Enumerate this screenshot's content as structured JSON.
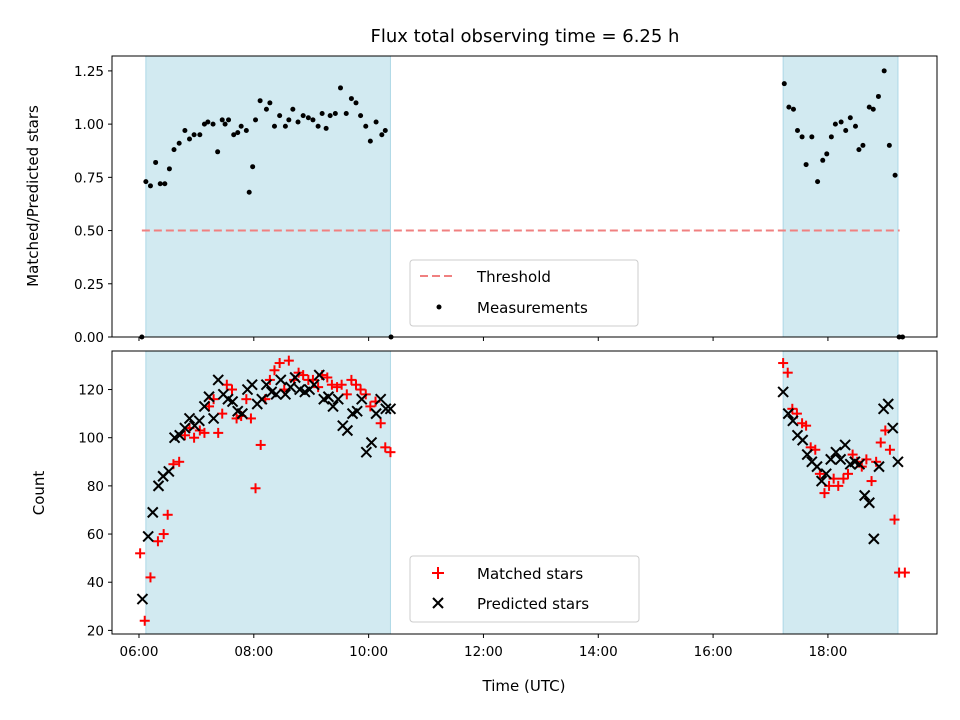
{
  "chart_data": {
    "title": "Flux total observing time = 6.25 h",
    "type": "scatter",
    "colors": {
      "threshold": "#f08080",
      "measurements": "#000000",
      "matched": "#ff0000",
      "predicted": "#000000",
      "shade": "#add8e6"
    },
    "x_axis": {
      "label": "Time (UTC)",
      "unit": "hours",
      "xlim": [
        5.53,
        19.9
      ],
      "ticks": [
        {
          "value": 6,
          "label": "06:00"
        },
        {
          "value": 8,
          "label": "08:00"
        },
        {
          "value": 10,
          "label": "10:00"
        },
        {
          "value": 12,
          "label": "12:00"
        },
        {
          "value": 14,
          "label": "14:00"
        },
        {
          "value": 16,
          "label": "16:00"
        },
        {
          "value": 18,
          "label": "18:00"
        }
      ]
    },
    "observing_windows": [
      [
        6.12,
        10.38
      ],
      [
        17.22,
        19.22
      ]
    ],
    "ratio_panel": {
      "ylabel": "Matched/Predicted stars",
      "ylim": [
        0,
        1.32
      ],
      "yticks": [
        {
          "value": 0.0,
          "label": "0.00"
        },
        {
          "value": 0.25,
          "label": "0.25"
        },
        {
          "value": 0.5,
          "label": "0.50"
        },
        {
          "value": 0.75,
          "label": "0.75"
        },
        {
          "value": 1.0,
          "label": "1.00"
        },
        {
          "value": 1.25,
          "label": "1.25"
        }
      ],
      "threshold": {
        "name": "Threshold",
        "value": 0.5,
        "x_range": [
          6.05,
          19.25
        ]
      },
      "legend": {
        "entries": [
          "Threshold",
          "Measurements"
        ],
        "placement": "lower-center"
      },
      "measurements": {
        "name": "Measurements",
        "x": [
          6.05,
          6.12,
          6.2,
          6.29,
          6.37,
          6.45,
          6.53,
          6.61,
          6.7,
          6.8,
          6.88,
          6.96,
          7.06,
          7.14,
          7.2,
          7.29,
          7.37,
          7.45,
          7.5,
          7.56,
          7.65,
          7.72,
          7.78,
          7.87,
          7.92,
          7.98,
          8.03,
          8.11,
          8.22,
          8.28,
          8.36,
          8.45,
          8.55,
          8.61,
          8.68,
          8.77,
          8.86,
          8.95,
          9.03,
          9.12,
          9.19,
          9.26,
          9.33,
          9.42,
          9.51,
          9.61,
          9.7,
          9.78,
          9.86,
          9.95,
          10.03,
          10.13,
          10.23,
          10.29,
          10.39,
          17.24,
          17.32,
          17.4,
          17.47,
          17.55,
          17.62,
          17.72,
          17.82,
          17.91,
          17.98,
          18.06,
          18.13,
          18.23,
          18.31,
          18.39,
          18.48,
          18.54,
          18.61,
          18.72,
          18.79,
          18.88,
          18.98,
          19.07,
          19.17,
          19.24,
          19.3
        ],
        "y": [
          0.0,
          0.73,
          0.71,
          0.82,
          0.72,
          0.72,
          0.79,
          0.88,
          0.91,
          0.97,
          0.93,
          0.95,
          0.95,
          1.0,
          1.01,
          1.0,
          0.87,
          1.02,
          1.0,
          1.02,
          0.95,
          0.96,
          0.99,
          0.97,
          0.68,
          0.8,
          1.02,
          1.11,
          1.07,
          1.1,
          0.99,
          1.04,
          0.99,
          1.02,
          1.07,
          1.01,
          1.04,
          1.03,
          1.02,
          0.99,
          1.05,
          0.98,
          1.04,
          1.05,
          1.17,
          1.05,
          1.12,
          1.1,
          1.04,
          0.99,
          0.92,
          1.01,
          0.95,
          0.97,
          0.0,
          1.19,
          1.08,
          1.07,
          0.97,
          0.94,
          0.81,
          0.94,
          0.73,
          0.83,
          0.86,
          0.94,
          1.0,
          1.01,
          0.97,
          1.03,
          0.99,
          0.88,
          0.9,
          1.08,
          1.07,
          1.13,
          1.25,
          0.9,
          0.76,
          0.0,
          0.0
        ]
      }
    },
    "count_panel": {
      "ylabel": "Count",
      "ylim": [
        18.5,
        136
      ],
      "yticks": [
        {
          "value": 20,
          "label": "20"
        },
        {
          "value": 40,
          "label": "40"
        },
        {
          "value": 60,
          "label": "60"
        },
        {
          "value": 80,
          "label": "80"
        },
        {
          "value": 100,
          "label": "100"
        },
        {
          "value": 120,
          "label": "120"
        }
      ],
      "legend": {
        "entries": [
          "Matched stars",
          "Predicted stars"
        ],
        "placement": "lower-center"
      },
      "matched": {
        "name": "Matched stars",
        "x": [
          6.02,
          6.1,
          6.2,
          6.33,
          6.43,
          6.5,
          6.6,
          6.7,
          6.8,
          6.88,
          6.96,
          7.06,
          7.14,
          7.22,
          7.3,
          7.38,
          7.45,
          7.53,
          7.62,
          7.7,
          7.78,
          7.87,
          7.95,
          8.03,
          8.12,
          8.2,
          8.28,
          8.36,
          8.45,
          8.53,
          8.61,
          8.7,
          8.78,
          8.86,
          8.95,
          9.03,
          9.12,
          9.19,
          9.28,
          9.36,
          9.45,
          9.53,
          9.62,
          9.7,
          9.78,
          9.86,
          9.95,
          10.03,
          10.12,
          10.21,
          10.29,
          10.38,
          17.22,
          17.3,
          17.38,
          17.46,
          17.55,
          17.62,
          17.7,
          17.78,
          17.86,
          17.94,
          18.02,
          18.1,
          18.18,
          18.27,
          18.35,
          18.43,
          18.51,
          18.59,
          18.67,
          18.76,
          18.84,
          18.92,
          19.0,
          19.08,
          19.16,
          19.24,
          19.34
        ],
        "y": [
          52,
          24,
          42,
          57,
          60,
          68,
          89,
          90,
          101,
          104,
          100,
          103,
          102,
          113,
          116,
          102,
          110,
          122,
          120,
          108,
          109,
          116,
          108,
          79,
          97,
          116,
          124,
          128,
          131,
          120,
          132,
          124,
          127,
          126,
          124,
          124,
          121,
          126,
          125,
          122,
          121,
          122,
          118,
          124,
          122,
          120,
          118,
          113,
          115,
          106,
          96,
          94,
          131,
          127,
          112,
          110,
          106,
          105,
          96,
          95,
          85,
          77,
          80,
          83,
          80,
          83,
          85,
          93,
          90,
          88,
          91,
          82,
          90,
          98,
          103,
          95,
          66,
          44,
          44
        ]
      },
      "predicted": {
        "name": "Predicted stars",
        "x": [
          6.06,
          6.16,
          6.24,
          6.34,
          6.42,
          6.52,
          6.62,
          6.71,
          6.8,
          6.88,
          6.97,
          7.05,
          7.14,
          7.22,
          7.3,
          7.38,
          7.47,
          7.55,
          7.63,
          7.72,
          7.8,
          7.89,
          7.97,
          8.06,
          8.14,
          8.22,
          8.31,
          8.39,
          8.47,
          8.55,
          8.64,
          8.72,
          8.8,
          8.89,
          8.97,
          9.05,
          9.14,
          9.22,
          9.3,
          9.38,
          9.47,
          9.55,
          9.63,
          9.72,
          9.8,
          9.88,
          9.96,
          10.05,
          10.13,
          10.21,
          10.3,
          10.38,
          17.22,
          17.31,
          17.39,
          17.47,
          17.56,
          17.64,
          17.72,
          17.81,
          17.89,
          17.97,
          18.05,
          18.14,
          18.22,
          18.3,
          18.39,
          18.47,
          18.55,
          18.64,
          18.72,
          18.8,
          18.89,
          18.97,
          19.05,
          19.13,
          19.22
        ],
        "y": [
          33,
          59,
          69,
          80,
          84,
          86,
          100,
          101,
          104,
          108,
          105,
          107,
          113,
          117,
          108,
          124,
          118,
          116,
          115,
          111,
          110,
          120,
          122,
          114,
          116,
          122,
          119,
          118,
          124,
          118,
          121,
          125,
          120,
          119,
          120,
          122,
          126,
          116,
          117,
          113,
          116,
          105,
          103,
          110,
          111,
          116,
          94,
          98,
          110,
          116,
          112,
          112,
          119,
          110,
          107,
          101,
          99,
          93,
          90,
          88,
          82,
          85,
          91,
          94,
          91,
          97,
          89,
          90,
          89,
          76,
          73,
          58,
          88,
          112,
          114,
          104,
          90
        ]
      }
    }
  }
}
